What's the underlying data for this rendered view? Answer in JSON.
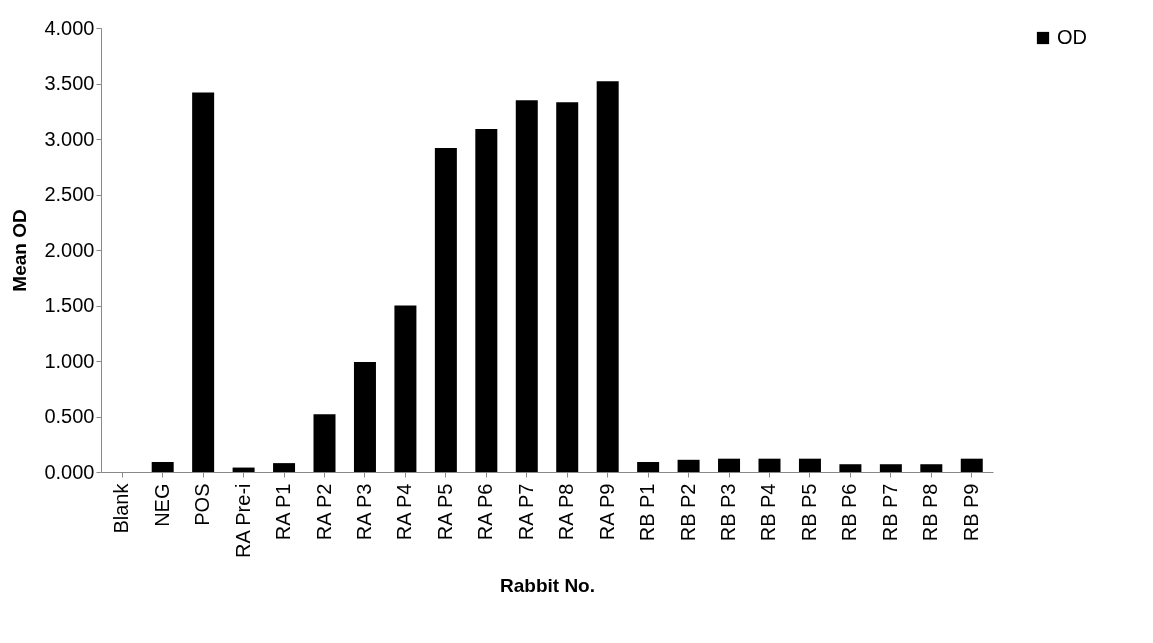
{
  "chart_data": {
    "type": "bar",
    "xlabel": "Rabbit No.",
    "ylabel": "Mean OD",
    "categories": [
      "Blank",
      "NEG",
      "POS",
      "RA Pre-i",
      "RA P1",
      "RA P2",
      "RA P3",
      "RA P4",
      "RA P5",
      "RA P6",
      "RA P7",
      "RA P8",
      "RA P9",
      "RB P1",
      "RB P2",
      "RB P3",
      "RB P4",
      "RB P5",
      "RB P6",
      "RB P7",
      "RB P8",
      "RB P9"
    ],
    "series": [
      {
        "name": "OD",
        "color": "#000000",
        "values": [
          0,
          0.09,
          3.42,
          0.04,
          0.08,
          0.52,
          0.99,
          1.5,
          2.92,
          3.09,
          3.35,
          3.33,
          3.52,
          0.09,
          0.11,
          0.12,
          0.12,
          0.12,
          0.07,
          0.07,
          0.07,
          0.12
        ]
      }
    ],
    "ylim": [
      0,
      4
    ],
    "yticks": [
      {
        "value": 0,
        "label": "0.000"
      },
      {
        "value": 0.5,
        "label": "0.500"
      },
      {
        "value": 1,
        "label": "1.000"
      },
      {
        "value": 1.5,
        "label": "1.500"
      },
      {
        "value": 2,
        "label": "2.000"
      },
      {
        "value": 2.5,
        "label": "2.500"
      },
      {
        "value": 3,
        "label": "3.000"
      },
      {
        "value": 3.5,
        "label": "3.500"
      },
      {
        "value": 4,
        "label": "4.000"
      }
    ],
    "grid": false,
    "legend": "right"
  }
}
